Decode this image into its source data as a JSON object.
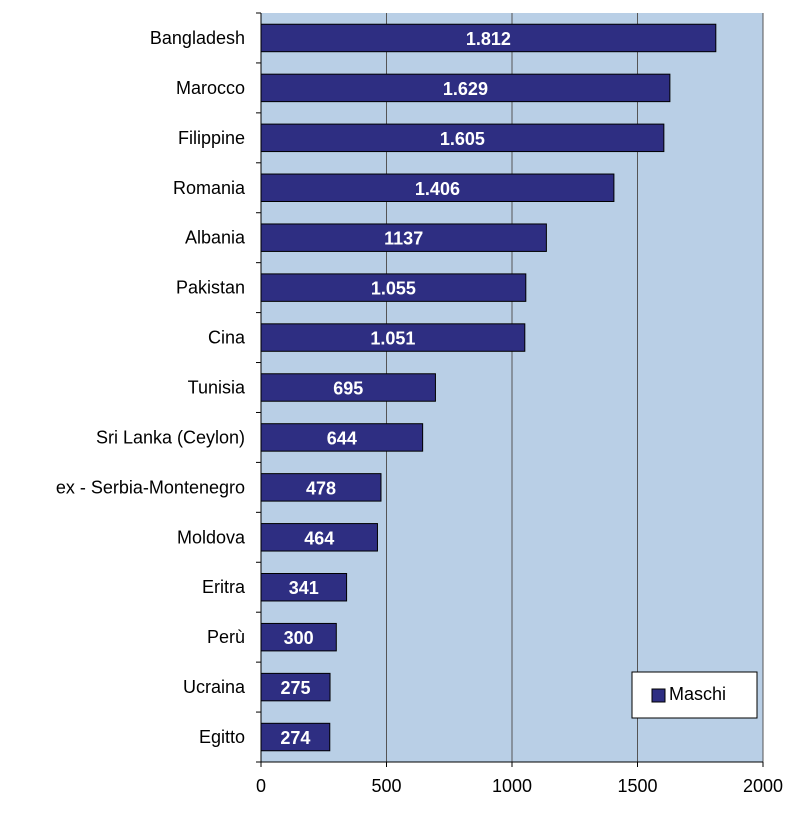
{
  "chart_data": {
    "type": "bar",
    "orientation": "horizontal",
    "categories": [
      "Bangladesh",
      "Marocco",
      "Filippine",
      "Romania",
      "Albania",
      "Pakistan",
      "Cina",
      "Tunisia",
      "Sri Lanka (Ceylon)",
      "ex - Serbia-Montenegro",
      "Moldova",
      "Eritra",
      "Perù",
      "Ucraina",
      "Egitto"
    ],
    "series": [
      {
        "name": "Maschi",
        "values": [
          1812,
          1629,
          1605,
          1406,
          1137,
          1055,
          1051,
          695,
          644,
          478,
          464,
          341,
          300,
          275,
          274
        ],
        "labels": [
          "1.812",
          "1.629",
          "1.605",
          "1.406",
          "1137",
          "1.055",
          "1.051",
          "695",
          "644",
          "478",
          "464",
          "341",
          "300",
          "275",
          "274"
        ]
      }
    ],
    "xlim": [
      0,
      2000
    ],
    "x_ticks": [
      0,
      500,
      1000,
      1500,
      2000
    ],
    "x_tick_labels": [
      "0",
      "500",
      "1000",
      "1500",
      "2000"
    ],
    "grid": "vertical",
    "legend_position": "bottom-right",
    "colors": {
      "bar": "#2e2e82",
      "bar_border": "#000000",
      "plot_background": "#b9cfe6",
      "bar_label": "#ffffff",
      "gridline": "#555555"
    }
  }
}
